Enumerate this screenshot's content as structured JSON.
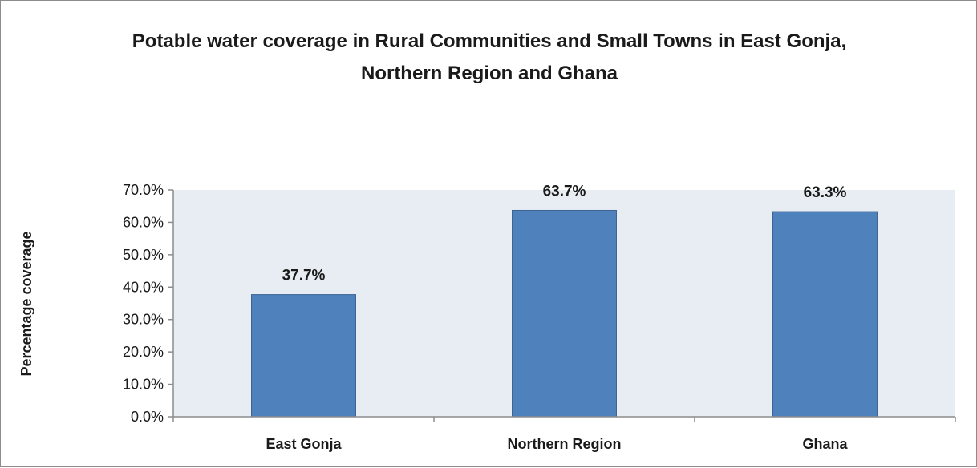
{
  "chart_data": {
    "type": "bar",
    "title_lines": [
      "Potable water coverage in Rural Communities and Small Towns in East Gonja,",
      "Northern Region and Ghana"
    ],
    "xlabel": "",
    "ylabel": "Percentage coverage",
    "categories": [
      "East Gonja",
      "Northern Region",
      "Ghana"
    ],
    "values": [
      37.7,
      63.7,
      63.3
    ],
    "data_labels": [
      "37.7%",
      "63.7%",
      "63.3%"
    ],
    "ylim": [
      0,
      70
    ],
    "yticks": [
      0,
      10,
      20,
      30,
      40,
      50,
      60,
      70
    ],
    "ytick_labels": [
      "0.0%",
      "10.0%",
      "20.0%",
      "30.0%",
      "40.0%",
      "50.0%",
      "60.0%",
      "70.0%"
    ],
    "grid": false,
    "legend": "none",
    "colors": {
      "bar_fill": "#4f81bd",
      "bar_stroke": "#3c6494",
      "plot_background": "#e8edf4",
      "axis": "#8c8c8c"
    }
  }
}
